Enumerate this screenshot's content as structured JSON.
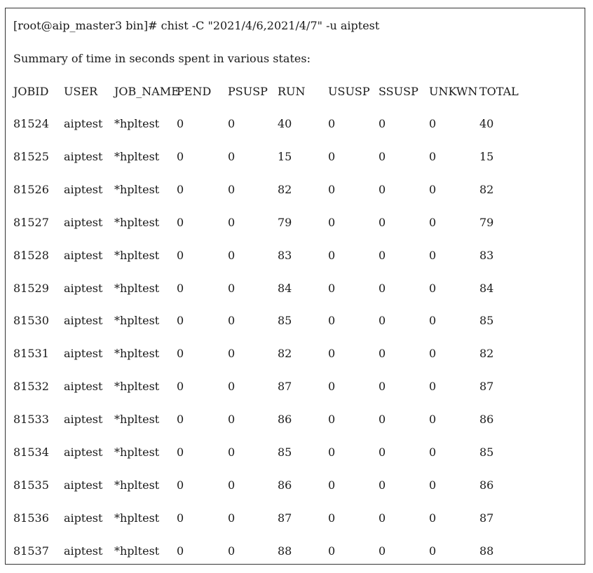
{
  "terminal": {
    "command": "[root@aip_master3 bin]# chist -C \"2021/4/6,2021/4/7\" -u aiptest",
    "summary": "Summary of time in seconds spent in various states:",
    "headers": [
      "JOBID",
      "USER",
      "JOB_NAME",
      "PEND",
      "PSUSP",
      "RUN",
      "USUSP",
      "SSUSP",
      "UNKWN",
      "TOTAL"
    ],
    "rows": [
      [
        "81524",
        "aiptest",
        "*hpltest",
        "0",
        "0",
        "40",
        "0",
        "0",
        "0",
        "40"
      ],
      [
        "81525",
        "aiptest",
        "*hpltest",
        "0",
        "0",
        "15",
        "0",
        "0",
        "0",
        "15"
      ],
      [
        "81526",
        "aiptest",
        "*hpltest",
        "0",
        "0",
        "82",
        "0",
        "0",
        "0",
        "82"
      ],
      [
        "81527",
        "aiptest",
        "*hpltest",
        "0",
        "0",
        "79",
        "0",
        "0",
        "0",
        "79"
      ],
      [
        "81528",
        "aiptest",
        "*hpltest",
        "0",
        "0",
        "83",
        "0",
        "0",
        "0",
        "83"
      ],
      [
        "81529",
        "aiptest",
        "*hpltest",
        "0",
        "0",
        "84",
        "0",
        "0",
        "0",
        "84"
      ],
      [
        "81530",
        "aiptest",
        "*hpltest",
        "0",
        "0",
        "85",
        "0",
        "0",
        "0",
        "85"
      ],
      [
        "81531",
        "aiptest",
        "*hpltest",
        "0",
        "0",
        "82",
        "0",
        "0",
        "0",
        "82"
      ],
      [
        "81532",
        "aiptest",
        "*hpltest",
        "0",
        "0",
        "87",
        "0",
        "0",
        "0",
        "87"
      ],
      [
        "81533",
        "aiptest",
        "*hpltest",
        "0",
        "0",
        "86",
        "0",
        "0",
        "0",
        "86"
      ],
      [
        "81534",
        "aiptest",
        "*hpltest",
        "0",
        "0",
        "85",
        "0",
        "0",
        "0",
        "85"
      ],
      [
        "81535",
        "aiptest",
        "*hpltest",
        "0",
        "0",
        "86",
        "0",
        "0",
        "0",
        "86"
      ],
      [
        "81536",
        "aiptest",
        "*hpltest",
        "0",
        "0",
        "87",
        "0",
        "0",
        "0",
        "87"
      ],
      [
        "81537",
        "aiptest",
        "*hpltest",
        "0",
        "0",
        "88",
        "0",
        "0",
        "0",
        "88"
      ]
    ]
  }
}
